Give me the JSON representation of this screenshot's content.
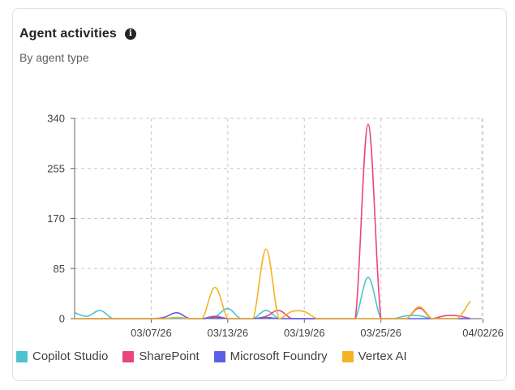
{
  "card": {
    "title": "Agent activities",
    "subtitle": "By agent type",
    "info_icon": "info-icon"
  },
  "chart_data": {
    "type": "line",
    "x": [
      "03/01/26",
      "03/02/26",
      "03/03/26",
      "03/04/26",
      "03/05/26",
      "03/06/26",
      "03/07/26",
      "03/08/26",
      "03/09/26",
      "03/10/26",
      "03/11/26",
      "03/12/26",
      "03/13/26",
      "03/14/26",
      "03/15/26",
      "03/16/26",
      "03/17/26",
      "03/18/26",
      "03/19/26",
      "03/20/26",
      "03/21/26",
      "03/22/26",
      "03/23/26",
      "03/24/26",
      "03/25/26",
      "03/26/26",
      "03/27/26",
      "03/28/26",
      "03/29/26",
      "03/30/26",
      "03/31/26",
      "04/01/26"
    ],
    "xticks": [
      "03/07/26",
      "03/13/26",
      "03/19/26",
      "03/25/26",
      "04/02/26"
    ],
    "yticks": [
      0,
      85,
      170,
      255,
      340
    ],
    "ylim": [
      0,
      340
    ],
    "grid": true,
    "legend_position": "bottom",
    "series": [
      {
        "name": "Copilot Studio",
        "color": "#4cc3cf",
        "values": [
          10,
          4,
          14,
          0,
          0,
          0,
          0,
          0,
          0,
          0,
          0,
          3,
          17,
          0,
          0,
          14,
          0,
          0,
          0,
          0,
          0,
          0,
          0,
          70,
          0,
          0,
          5,
          5,
          0,
          0,
          0,
          0
        ]
      },
      {
        "name": "SharePoint",
        "color": "#e8467c",
        "values": [
          0,
          0,
          0,
          0,
          0,
          0,
          0,
          0,
          2,
          0,
          0,
          4,
          0,
          0,
          0,
          4,
          14,
          0,
          0,
          0,
          0,
          0,
          0,
          330,
          0,
          0,
          0,
          18,
          0,
          5,
          5,
          0
        ]
      },
      {
        "name": "Microsoft Foundry",
        "color": "#5b5fe8",
        "values": [
          0,
          0,
          0,
          0,
          0,
          0,
          0,
          2,
          10,
          0,
          0,
          2,
          0,
          0,
          0,
          2,
          0,
          0,
          0,
          0,
          0,
          0,
          0,
          0,
          0,
          0,
          0,
          0,
          0,
          0,
          0,
          0
        ]
      },
      {
        "name": "Vertex AI",
        "color": "#f5b324",
        "values": [
          0,
          0,
          0,
          0,
          0,
          0,
          0,
          0,
          2,
          0,
          0,
          53,
          0,
          0,
          0,
          118,
          0,
          12,
          12,
          0,
          0,
          0,
          0,
          0,
          0,
          0,
          0,
          20,
          0,
          0,
          0,
          30
        ]
      }
    ]
  }
}
